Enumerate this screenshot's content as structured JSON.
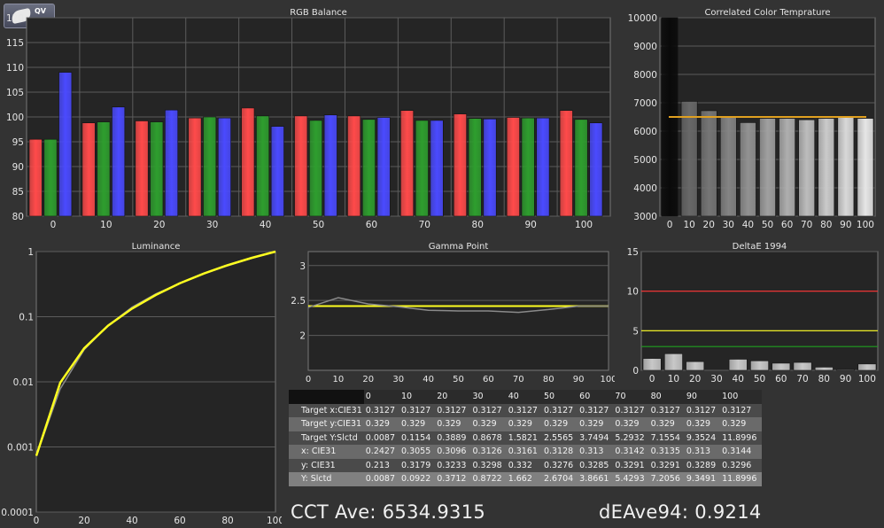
{
  "colors": {
    "background": "#333333",
    "plot_bg": "#252525",
    "grid": "#5c5c5c",
    "red": "#ff4a4a",
    "green": "#2e9e2e",
    "blue": "#4a4aff",
    "target_line": "#e0a020",
    "yellow": "#ffff20",
    "gray_line": "#8a8a8a",
    "deltae_red": "#ff3030",
    "deltae_green": "#20a020"
  },
  "logo": {
    "text": "QV",
    "icon": "gamepad-icon"
  },
  "chart_data": [
    {
      "type": "bar",
      "title": "RGB Balance",
      "categories": [
        "0",
        "10",
        "20",
        "30",
        "40",
        "50",
        "60",
        "70",
        "80",
        "90",
        "100"
      ],
      "ylim": [
        80,
        120
      ],
      "yticks": [
        "80",
        "85",
        "90",
        "95",
        "100",
        "105",
        "110",
        "115",
        "120"
      ],
      "series": [
        {
          "color": "red",
          "values": [
            95.5,
            98.8,
            99.2,
            99.8,
            101.8,
            100.2,
            100.2,
            101.3,
            100.6,
            99.9,
            101.3
          ]
        },
        {
          "color": "green",
          "values": [
            95.5,
            99.0,
            99.0,
            100.0,
            100.2,
            99.3,
            99.5,
            99.3,
            99.7,
            99.8,
            99.5
          ]
        },
        {
          "color": "blue",
          "values": [
            109.0,
            102.0,
            101.4,
            99.8,
            98.1,
            100.4,
            99.9,
            99.3,
            99.6,
            99.8,
            98.8
          ]
        }
      ]
    },
    {
      "type": "bar",
      "title": "Correlated Color Temprature",
      "categories": [
        "0",
        "10",
        "20",
        "30",
        "40",
        "50",
        "60",
        "70",
        "80",
        "90",
        "100"
      ],
      "ylim": [
        3000,
        10000
      ],
      "yticks": [
        "3000",
        "4000",
        "5000",
        "6000",
        "7000",
        "8000",
        "9000",
        "10000"
      ],
      "values": [
        10000,
        7050,
        6720,
        6500,
        6300,
        6450,
        6450,
        6400,
        6450,
        6500,
        6450
      ],
      "target": 6500
    },
    {
      "type": "line",
      "title": "Luminance",
      "scale_y": "log",
      "xlim": [
        0,
        100
      ],
      "ylim": [
        0.0001,
        1
      ],
      "xticks": [
        "0",
        "20",
        "40",
        "60",
        "80",
        "100"
      ],
      "yticks": [
        "0.0001",
        "0.001",
        "0.01",
        "0.1",
        "1"
      ],
      "x": [
        0,
        10,
        20,
        30,
        40,
        50,
        60,
        70,
        80,
        90,
        100
      ],
      "series": [
        {
          "color": "yellow",
          "values": [
            0.00073,
            0.0097,
            0.0327,
            0.073,
            0.133,
            0.216,
            0.326,
            0.46,
            0.62,
            0.8,
            1
          ]
        },
        {
          "color": "gray",
          "values": [
            0.00073,
            0.0078,
            0.0312,
            0.0733,
            0.1398,
            0.2247,
            0.325,
            0.456,
            0.606,
            0.786,
            1
          ]
        }
      ]
    },
    {
      "type": "line",
      "title": "Gamma Point",
      "xlim": [
        0,
        100
      ],
      "ylim": [
        1.5,
        3.2
      ],
      "xticks": [
        "0",
        "10",
        "20",
        "30",
        "40",
        "50",
        "60",
        "70",
        "80",
        "90",
        "100"
      ],
      "yticks": [
        "2",
        "2.5",
        "3"
      ],
      "x": [
        0,
        10,
        20,
        30,
        40,
        50,
        60,
        70,
        80,
        90,
        100
      ],
      "series": [
        {
          "color": "gray",
          "values": [
            2.4,
            2.54,
            2.45,
            2.41,
            2.36,
            2.35,
            2.35,
            2.33,
            2.37,
            2.42,
            2.42
          ]
        }
      ],
      "target": 2.42
    },
    {
      "type": "bar",
      "title": "DeltaE 1994",
      "categories": [
        "0",
        "10",
        "20",
        "30",
        "40",
        "50",
        "60",
        "70",
        "80",
        "90",
        "100"
      ],
      "ylim": [
        0,
        15
      ],
      "yticks": [
        "0",
        "5",
        "10",
        "15"
      ],
      "values": [
        1.5,
        2.1,
        1.1,
        0,
        1.4,
        1.2,
        0.9,
        1.0,
        0.4,
        0.1,
        0.8
      ],
      "thresholds": [
        {
          "value": 10,
          "color": "deltae_red"
        },
        {
          "value": 5,
          "color": "yellow"
        },
        {
          "value": 3,
          "color": "deltae_green"
        }
      ]
    }
  ],
  "table": {
    "headers": [
      "0",
      "10",
      "20",
      "30",
      "40",
      "50",
      "60",
      "70",
      "80",
      "90",
      "100"
    ],
    "rows": [
      {
        "label": "Target x:CIE31",
        "cells": [
          "0.3127",
          "0.3127",
          "0.3127",
          "0.3127",
          "0.3127",
          "0.3127",
          "0.3127",
          "0.3127",
          "0.3127",
          "0.3127",
          "0.3127"
        ]
      },
      {
        "label": "Target y:CIE31",
        "cells": [
          "0.329",
          "0.329",
          "0.329",
          "0.329",
          "0.329",
          "0.329",
          "0.329",
          "0.329",
          "0.329",
          "0.329",
          "0.329"
        ]
      },
      {
        "label": "Target Y:Slctd",
        "cells": [
          "0.0087",
          "0.1154",
          "0.3889",
          "0.8678",
          "1.5821",
          "2.5565",
          "3.7494",
          "5.2932",
          "7.1554",
          "9.3524",
          "11.8996"
        ]
      },
      {
        "label": "x: CIE31",
        "cells": [
          "0.2427",
          "0.3055",
          "0.3096",
          "0.3126",
          "0.3161",
          "0.3128",
          "0.313",
          "0.3142",
          "0.3135",
          "0.313",
          "0.3144"
        ]
      },
      {
        "label": "y: CIE31",
        "cells": [
          "0.213",
          "0.3179",
          "0.3233",
          "0.3298",
          "0.332",
          "0.3276",
          "0.3285",
          "0.3291",
          "0.3291",
          "0.3289",
          "0.3296"
        ]
      },
      {
        "label": "Y: Slctd",
        "cells": [
          "0.0087",
          "0.0922",
          "0.3712",
          "0.8722",
          "1.662",
          "2.6704",
          "3.8661",
          "5.4293",
          "7.2056",
          "9.3491",
          "11.8996"
        ]
      }
    ]
  },
  "summary": {
    "cct": "CCT Ave: 6534.9315",
    "de": "dEAve94: 0.9214"
  }
}
